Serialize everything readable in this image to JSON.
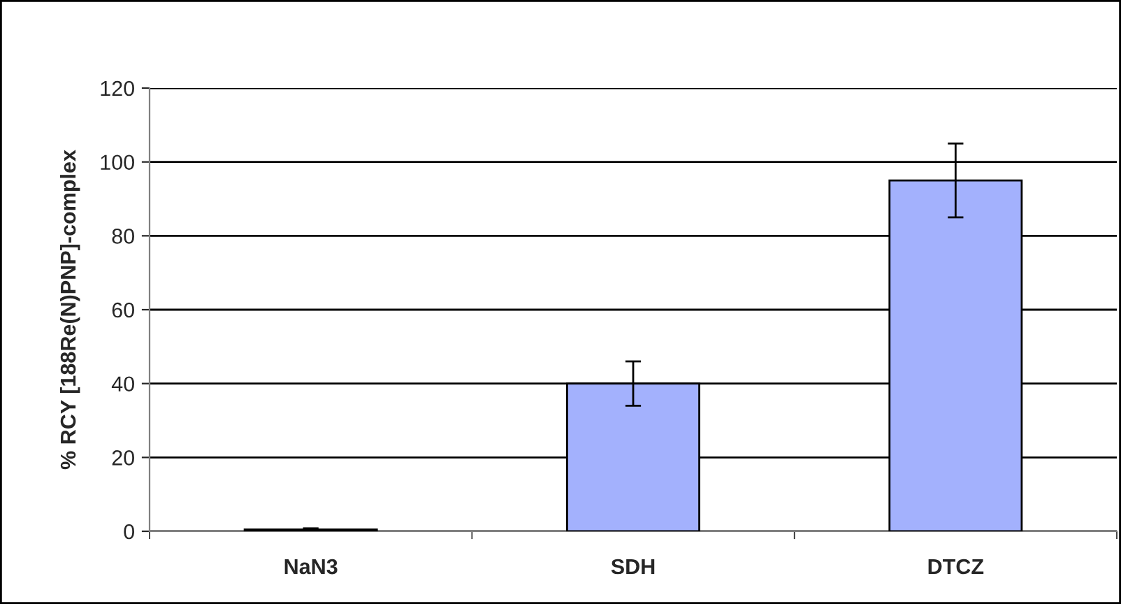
{
  "chart_data": {
    "type": "bar",
    "ylabel": "% RCY [188Re(N)PNP]-complex",
    "categories": [
      "NaN3",
      "SDH",
      "DTCZ"
    ],
    "series": [
      {
        "color": "#a3b1fd",
        "values": [
          0.5,
          40,
          95
        ],
        "errors": [
          0.3,
          6,
          10
        ]
      }
    ],
    "ylim": [
      0,
      120
    ],
    "yticks": [
      0,
      20,
      40,
      60,
      80,
      100,
      120
    ],
    "grid": "y",
    "legend": false
  }
}
